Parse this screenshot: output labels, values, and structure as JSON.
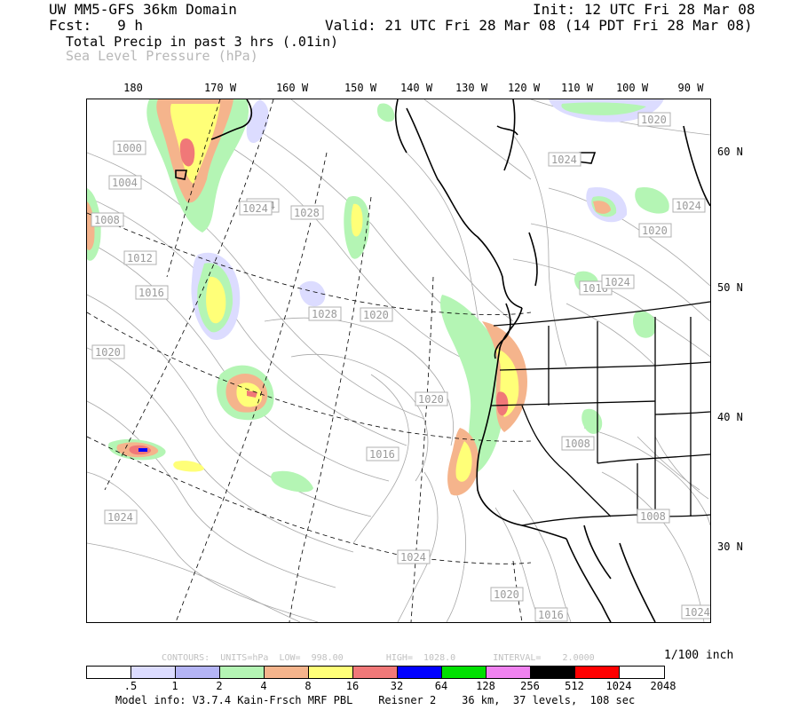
{
  "header": {
    "model_domain": "UW MM5-GFS 36km Domain",
    "init": "Init: 12 UTC Fri 28 Mar 08",
    "fcst": "Fcst:   9 h",
    "valid": "Valid: 21 UTC Fri 28 Mar 08 (14 PDT Fri 28 Mar 08)",
    "field1": "Total Precip in past 3 hrs (.01in)",
    "field2": "Sea Level Pressure (hPa)"
  },
  "longitude_labels": [
    "180",
    "170 W",
    "160 W",
    "150 W",
    "140 W",
    "130 W",
    "120 W",
    "110 W",
    "100 W",
    "90 W"
  ],
  "latitude_labels": [
    "60 N",
    "50 N",
    "40 N",
    "30 N"
  ],
  "isobar_labels": [
    "1000",
    "1004",
    "1008",
    "1012",
    "1016",
    "1020",
    "1024",
    "1028",
    "1024",
    "1020",
    "1020",
    "1016",
    "1016",
    "1020",
    "1024",
    "1020",
    "1024",
    "1028",
    "1024",
    "1024",
    "1020",
    "1016",
    "1008",
    "1008",
    "1024",
    "1024"
  ],
  "contour_info": "CONTOURS:  UNITS=hPa  LOW=  998.00        HIGH=  1028.0       INTERVAL=    2.0000",
  "legend": {
    "unit_label": "1/100 inch",
    "colors": [
      "#ffffff",
      "#dcdcff",
      "#b4b4f5",
      "#b4f5b4",
      "#f5b48c",
      "#ffff78",
      "#f07878",
      "#0000ff",
      "#00e000",
      "#f082f0",
      "#000000",
      "#ff0000",
      "#ffffff"
    ],
    "ticks": [
      ".5",
      "1",
      "2",
      "4",
      "8",
      "16",
      "32",
      "64",
      "128",
      "256",
      "512",
      "1024",
      "2048"
    ]
  },
  "footer": "Model info: V3.7.4 Kain-Frsch MRF PBL    Reisner 2    36 km,  37 levels,  108 sec"
}
